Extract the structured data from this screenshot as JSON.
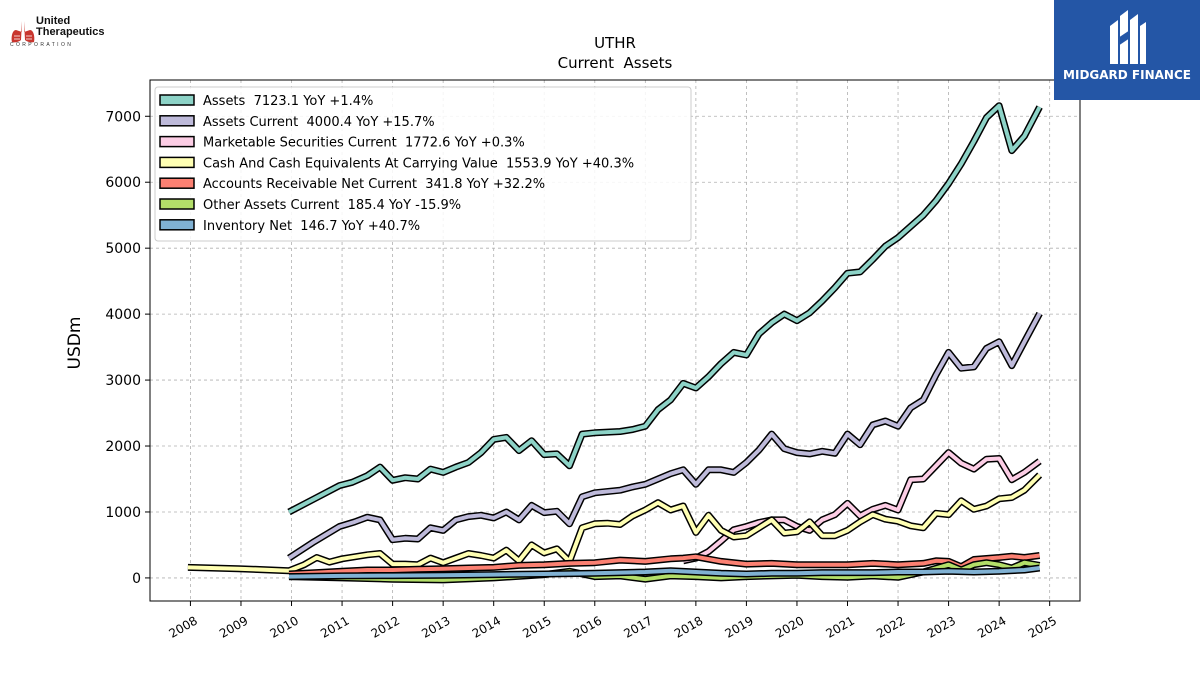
{
  "logos": {
    "left_name_line1": "United",
    "left_name_line2": "Therapeutics",
    "left_name_line3": "CORPORATION",
    "right_text": "MIDGARD FINANCE"
  },
  "chart_data": {
    "type": "line",
    "title": "UTHR",
    "subtitle": "Current  Assets",
    "ylabel": "USDm",
    "xlabel": "",
    "xlim": [
      2007.2,
      2025.6
    ],
    "ylim": [
      -350,
      7550
    ],
    "yticks": [
      0,
      1000,
      2000,
      3000,
      4000,
      5000,
      6000,
      7000
    ],
    "xticks": [
      2008,
      2009,
      2010,
      2011,
      2012,
      2013,
      2014,
      2015,
      2016,
      2017,
      2018,
      2019,
      2020,
      2021,
      2022,
      2023,
      2024,
      2025
    ],
    "grid": true,
    "legend_position": "top-left",
    "colors": [
      "#8dd3c7",
      "#bebada",
      "#fccde5",
      "#ffffb3",
      "#fb8072",
      "#b3de69",
      "#80b1d3"
    ],
    "series": [
      {
        "name": "Assets  7123.1 YoY +1.4%",
        "points": [
          [
            2009.95,
            1000
          ],
          [
            2010.45,
            1200
          ],
          [
            2010.95,
            1400
          ],
          [
            2011.2,
            1450
          ],
          [
            2011.5,
            1550
          ],
          [
            2011.75,
            1680
          ],
          [
            2012.0,
            1480
          ],
          [
            2012.25,
            1520
          ],
          [
            2012.5,
            1500
          ],
          [
            2012.75,
            1650
          ],
          [
            2013.0,
            1600
          ],
          [
            2013.25,
            1680
          ],
          [
            2013.5,
            1750
          ],
          [
            2013.75,
            1900
          ],
          [
            2014.0,
            2100
          ],
          [
            2014.25,
            2130
          ],
          [
            2014.5,
            1930
          ],
          [
            2014.75,
            2080
          ],
          [
            2015.0,
            1870
          ],
          [
            2015.25,
            1880
          ],
          [
            2015.5,
            1700
          ],
          [
            2015.75,
            2180
          ],
          [
            2016.0,
            2200
          ],
          [
            2016.5,
            2220
          ],
          [
            2016.75,
            2250
          ],
          [
            2017.0,
            2300
          ],
          [
            2017.25,
            2550
          ],
          [
            2017.5,
            2700
          ],
          [
            2017.75,
            2950
          ],
          [
            2018.0,
            2880
          ],
          [
            2018.25,
            3050
          ],
          [
            2018.5,
            3250
          ],
          [
            2018.75,
            3420
          ],
          [
            2019.0,
            3380
          ],
          [
            2019.25,
            3700
          ],
          [
            2019.5,
            3870
          ],
          [
            2019.75,
            4000
          ],
          [
            2020.0,
            3900
          ],
          [
            2020.25,
            4020
          ],
          [
            2020.5,
            4200
          ],
          [
            2020.75,
            4400
          ],
          [
            2021.0,
            4620
          ],
          [
            2021.25,
            4640
          ],
          [
            2021.5,
            4830
          ],
          [
            2021.75,
            5030
          ],
          [
            2022.0,
            5160
          ],
          [
            2022.25,
            5330
          ],
          [
            2022.5,
            5500
          ],
          [
            2022.75,
            5720
          ],
          [
            2023.0,
            5980
          ],
          [
            2023.25,
            6280
          ],
          [
            2023.5,
            6620
          ],
          [
            2023.75,
            6980
          ],
          [
            2024.0,
            7160
          ],
          [
            2024.25,
            6480
          ],
          [
            2024.5,
            6700
          ],
          [
            2024.8,
            7140
          ]
        ]
      },
      {
        "name": "Assets Current  4000.4 YoY +15.7%",
        "points": [
          [
            2009.95,
            300
          ],
          [
            2010.45,
            550
          ],
          [
            2010.95,
            780
          ],
          [
            2011.25,
            850
          ],
          [
            2011.5,
            920
          ],
          [
            2011.75,
            880
          ],
          [
            2012.0,
            580
          ],
          [
            2012.25,
            600
          ],
          [
            2012.5,
            590
          ],
          [
            2012.75,
            760
          ],
          [
            2013.0,
            720
          ],
          [
            2013.25,
            880
          ],
          [
            2013.5,
            930
          ],
          [
            2013.75,
            950
          ],
          [
            2014.0,
            910
          ],
          [
            2014.25,
            1000
          ],
          [
            2014.5,
            880
          ],
          [
            2014.75,
            1100
          ],
          [
            2015.0,
            990
          ],
          [
            2015.25,
            1010
          ],
          [
            2015.5,
            820
          ],
          [
            2015.75,
            1230
          ],
          [
            2016.0,
            1290
          ],
          [
            2016.5,
            1330
          ],
          [
            2016.75,
            1380
          ],
          [
            2017.0,
            1420
          ],
          [
            2017.25,
            1500
          ],
          [
            2017.5,
            1580
          ],
          [
            2017.75,
            1640
          ],
          [
            2018.0,
            1420
          ],
          [
            2018.25,
            1640
          ],
          [
            2018.5,
            1640
          ],
          [
            2018.75,
            1600
          ],
          [
            2019.0,
            1750
          ],
          [
            2019.25,
            1940
          ],
          [
            2019.5,
            2180
          ],
          [
            2019.75,
            1960
          ],
          [
            2020.0,
            1900
          ],
          [
            2020.25,
            1880
          ],
          [
            2020.5,
            1920
          ],
          [
            2020.75,
            1890
          ],
          [
            2021.0,
            2180
          ],
          [
            2021.25,
            2020
          ],
          [
            2021.5,
            2320
          ],
          [
            2021.75,
            2380
          ],
          [
            2022.0,
            2300
          ],
          [
            2022.25,
            2580
          ],
          [
            2022.5,
            2700
          ],
          [
            2022.75,
            3080
          ],
          [
            2023.0,
            3420
          ],
          [
            2023.25,
            3180
          ],
          [
            2023.5,
            3200
          ],
          [
            2023.75,
            3480
          ],
          [
            2024.0,
            3580
          ],
          [
            2024.25,
            3220
          ],
          [
            2024.5,
            3580
          ],
          [
            2024.8,
            4010
          ]
        ]
      },
      {
        "name": "Marketable Securities Current  1772.6 YoY +0.3%",
        "points": [
          [
            2017.75,
            260
          ],
          [
            2018.0,
            300
          ],
          [
            2018.25,
            400
          ],
          [
            2018.5,
            560
          ],
          [
            2018.75,
            730
          ],
          [
            2019.0,
            780
          ],
          [
            2019.25,
            840
          ],
          [
            2019.5,
            880
          ],
          [
            2019.75,
            880
          ],
          [
            2020.0,
            780
          ],
          [
            2020.25,
            720
          ],
          [
            2020.5,
            880
          ],
          [
            2020.75,
            960
          ],
          [
            2021.0,
            1130
          ],
          [
            2021.25,
            940
          ],
          [
            2021.5,
            1040
          ],
          [
            2021.75,
            1100
          ],
          [
            2022.0,
            1030
          ],
          [
            2022.25,
            1490
          ],
          [
            2022.5,
            1500
          ],
          [
            2022.75,
            1700
          ],
          [
            2023.0,
            1900
          ],
          [
            2023.25,
            1740
          ],
          [
            2023.5,
            1650
          ],
          [
            2023.75,
            1800
          ],
          [
            2024.0,
            1810
          ],
          [
            2024.25,
            1490
          ],
          [
            2024.5,
            1600
          ],
          [
            2024.8,
            1770
          ]
        ]
      },
      {
        "name": "Cash And Cash Equivalents At Carrying Value  1553.9 YoY +40.3%",
        "points": [
          [
            2007.95,
            160
          ],
          [
            2008.95,
            140
          ],
          [
            2009.95,
            110
          ],
          [
            2010.25,
            200
          ],
          [
            2010.5,
            310
          ],
          [
            2010.75,
            240
          ],
          [
            2011.0,
            290
          ],
          [
            2011.25,
            320
          ],
          [
            2011.5,
            350
          ],
          [
            2011.75,
            370
          ],
          [
            2012.0,
            210
          ],
          [
            2012.25,
            210
          ],
          [
            2012.5,
            200
          ],
          [
            2012.75,
            300
          ],
          [
            2013.0,
            230
          ],
          [
            2013.25,
            300
          ],
          [
            2013.5,
            370
          ],
          [
            2013.75,
            340
          ],
          [
            2014.0,
            300
          ],
          [
            2014.25,
            420
          ],
          [
            2014.5,
            260
          ],
          [
            2014.75,
            500
          ],
          [
            2015.0,
            380
          ],
          [
            2015.25,
            440
          ],
          [
            2015.5,
            250
          ],
          [
            2015.75,
            760
          ],
          [
            2016.0,
            820
          ],
          [
            2016.25,
            830
          ],
          [
            2016.5,
            810
          ],
          [
            2016.75,
            940
          ],
          [
            2017.0,
            1030
          ],
          [
            2017.25,
            1140
          ],
          [
            2017.5,
            1030
          ],
          [
            2017.75,
            1090
          ],
          [
            2018.0,
            690
          ],
          [
            2018.25,
            950
          ],
          [
            2018.5,
            720
          ],
          [
            2018.75,
            620
          ],
          [
            2019.0,
            640
          ],
          [
            2019.25,
            760
          ],
          [
            2019.5,
            880
          ],
          [
            2019.75,
            680
          ],
          [
            2020.0,
            700
          ],
          [
            2020.25,
            850
          ],
          [
            2020.5,
            640
          ],
          [
            2020.75,
            640
          ],
          [
            2021.0,
            720
          ],
          [
            2021.25,
            850
          ],
          [
            2021.5,
            960
          ],
          [
            2021.75,
            890
          ],
          [
            2022.0,
            860
          ],
          [
            2022.25,
            790
          ],
          [
            2022.5,
            760
          ],
          [
            2022.75,
            980
          ],
          [
            2023.0,
            960
          ],
          [
            2023.25,
            1170
          ],
          [
            2023.5,
            1040
          ],
          [
            2023.75,
            1090
          ],
          [
            2024.0,
            1200
          ],
          [
            2024.25,
            1220
          ],
          [
            2024.5,
            1330
          ],
          [
            2024.8,
            1560
          ]
        ]
      },
      {
        "name": "Accounts Receivable Net Current  341.8 YoY +32.2%",
        "points": [
          [
            2009.95,
            60
          ],
          [
            2010.5,
            80
          ],
          [
            2011.0,
            100
          ],
          [
            2011.5,
            120
          ],
          [
            2012.0,
            120
          ],
          [
            2012.5,
            130
          ],
          [
            2013.0,
            140
          ],
          [
            2013.5,
            150
          ],
          [
            2014.0,
            160
          ],
          [
            2014.5,
            190
          ],
          [
            2015.0,
            200
          ],
          [
            2015.5,
            220
          ],
          [
            2016.0,
            230
          ],
          [
            2016.5,
            270
          ],
          [
            2017.0,
            250
          ],
          [
            2017.5,
            290
          ],
          [
            2017.75,
            300
          ],
          [
            2018.0,
            320
          ],
          [
            2018.5,
            250
          ],
          [
            2019.0,
            210
          ],
          [
            2019.5,
            220
          ],
          [
            2020.0,
            200
          ],
          [
            2020.5,
            200
          ],
          [
            2021.0,
            200
          ],
          [
            2021.5,
            220
          ],
          [
            2022.0,
            200
          ],
          [
            2022.5,
            220
          ],
          [
            2022.75,
            260
          ],
          [
            2023.0,
            250
          ],
          [
            2023.25,
            170
          ],
          [
            2023.5,
            280
          ],
          [
            2024.0,
            310
          ],
          [
            2024.25,
            330
          ],
          [
            2024.5,
            310
          ],
          [
            2024.8,
            340
          ]
        ]
      },
      {
        "name": "Other Assets Current  185.4 YoY -15.9%",
        "points": [
          [
            2009.95,
            20
          ],
          [
            2011.0,
            0
          ],
          [
            2012.0,
            -20
          ],
          [
            2013.0,
            -30
          ],
          [
            2014.0,
            0
          ],
          [
            2015.0,
            50
          ],
          [
            2015.5,
            100
          ],
          [
            2016.0,
            20
          ],
          [
            2016.5,
            30
          ],
          [
            2017.0,
            -20
          ],
          [
            2017.5,
            30
          ],
          [
            2018.0,
            20
          ],
          [
            2018.5,
            0
          ],
          [
            2019.0,
            20
          ],
          [
            2019.5,
            30
          ],
          [
            2020.0,
            40
          ],
          [
            2020.5,
            20
          ],
          [
            2021.0,
            10
          ],
          [
            2021.5,
            30
          ],
          [
            2022.0,
            10
          ],
          [
            2022.5,
            90
          ],
          [
            2023.0,
            200
          ],
          [
            2023.25,
            120
          ],
          [
            2023.5,
            200
          ],
          [
            2023.75,
            230
          ],
          [
            2024.0,
            200
          ],
          [
            2024.25,
            150
          ],
          [
            2024.5,
            230
          ],
          [
            2024.8,
            190
          ]
        ]
      },
      {
        "name": "Inventory Net  146.7 YoY +40.7%",
        "points": [
          [
            2009.95,
            20
          ],
          [
            2011.0,
            30
          ],
          [
            2012.0,
            35
          ],
          [
            2013.0,
            40
          ],
          [
            2014.0,
            50
          ],
          [
            2015.0,
            60
          ],
          [
            2016.0,
            70
          ],
          [
            2016.5,
            80
          ],
          [
            2017.0,
            90
          ],
          [
            2017.5,
            110
          ],
          [
            2018.0,
            90
          ],
          [
            2018.5,
            70
          ],
          [
            2019.0,
            60
          ],
          [
            2019.5,
            70
          ],
          [
            2020.0,
            70
          ],
          [
            2020.5,
            80
          ],
          [
            2021.0,
            80
          ],
          [
            2021.5,
            80
          ],
          [
            2022.0,
            90
          ],
          [
            2022.5,
            90
          ],
          [
            2023.0,
            100
          ],
          [
            2023.5,
            90
          ],
          [
            2024.0,
            100
          ],
          [
            2024.5,
            120
          ],
          [
            2024.8,
            150
          ]
        ]
      }
    ]
  }
}
